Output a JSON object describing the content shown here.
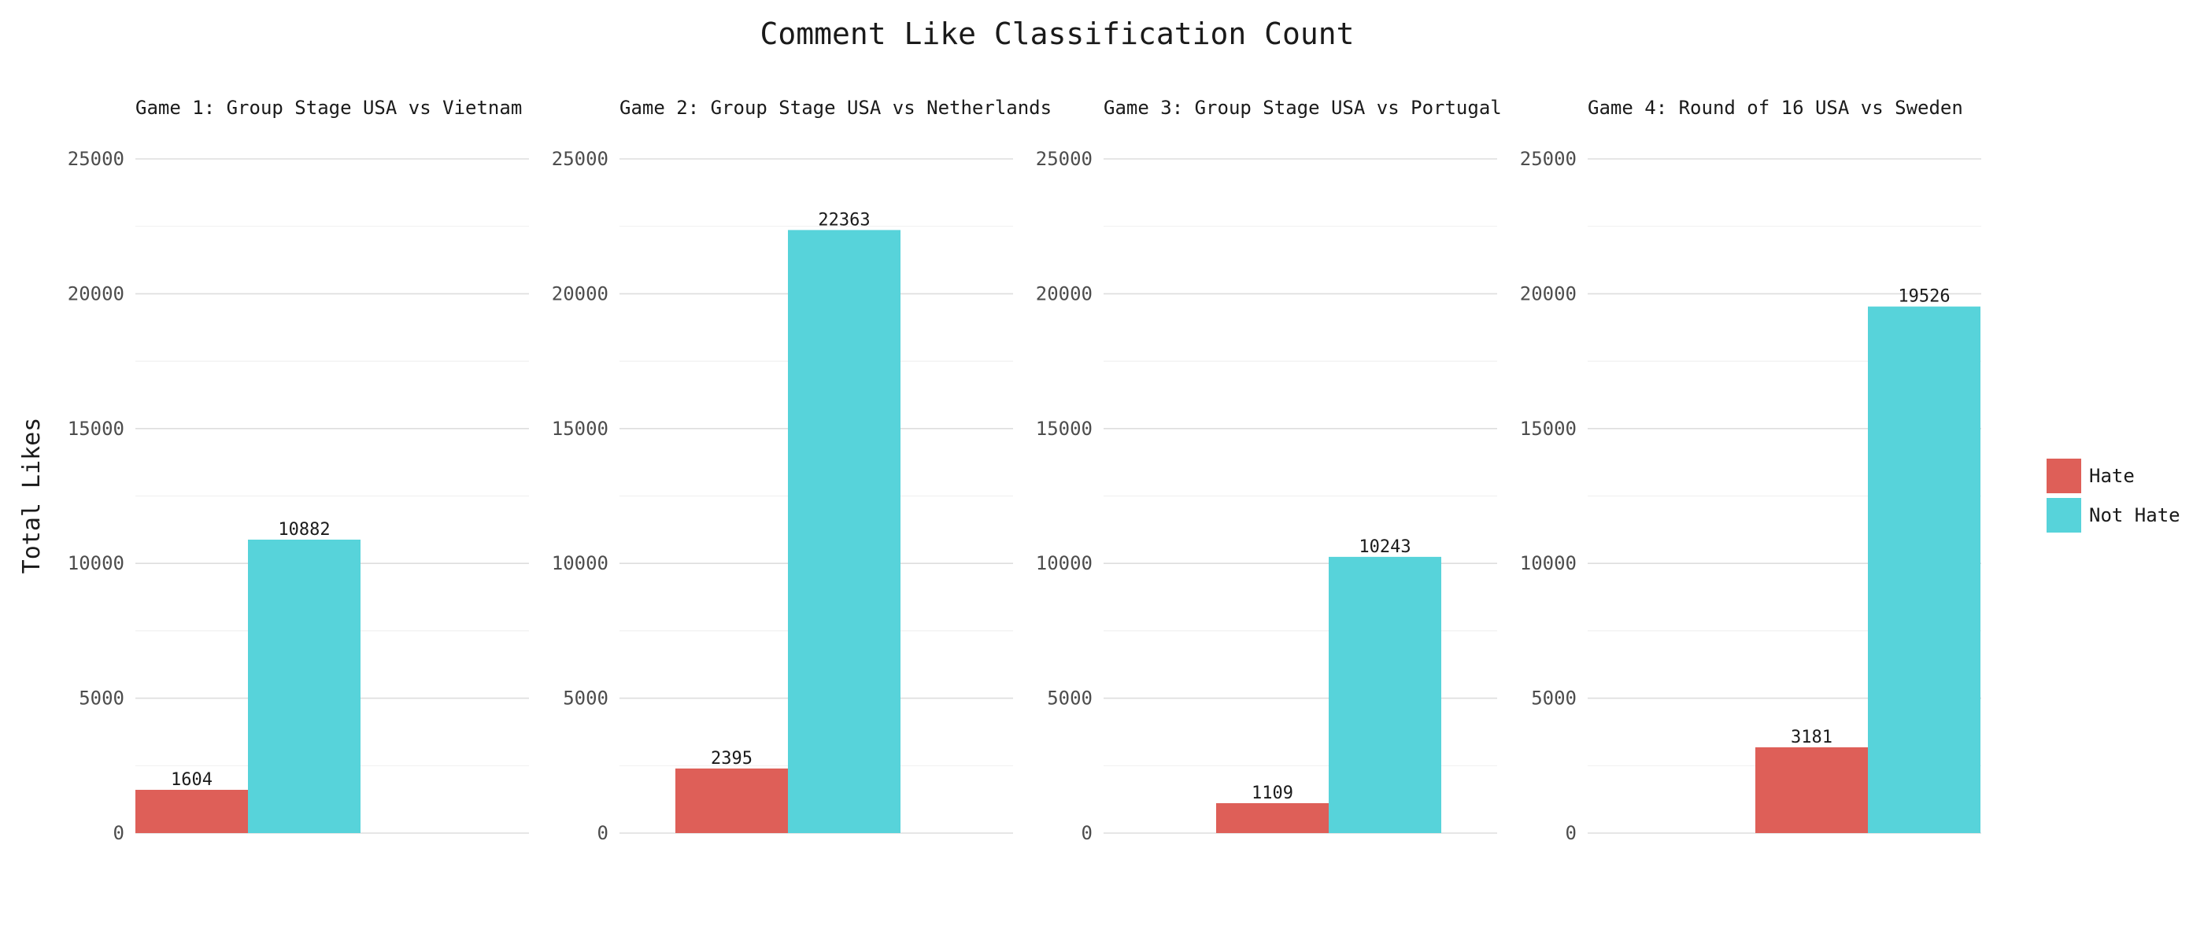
{
  "chart_data": {
    "type": "bar",
    "title": "Comment Like Classification Count",
    "ylabel": "Total Likes",
    "xlabel": "",
    "ylim": [
      0,
      25000
    ],
    "yticks": [
      0,
      5000,
      10000,
      15000,
      20000,
      25000
    ],
    "grid": true,
    "legend_position": "right",
    "series": [
      {
        "name": "Hate",
        "color": "#de5f58"
      },
      {
        "name": "Not Hate",
        "color": "#57d3da"
      }
    ],
    "panels": [
      {
        "title": "Game 1: Group Stage USA vs Vietnam",
        "values": {
          "Hate": 1604,
          "Not Hate": 10882
        }
      },
      {
        "title": "Game 2: Group Stage USA vs Netherlands",
        "values": {
          "Hate": 2395,
          "Not Hate": 22363
        }
      },
      {
        "title": "Game 3: Group Stage USA vs Portugal",
        "values": {
          "Hate": 1109,
          "Not Hate": 10243
        }
      },
      {
        "title": "Game 4: Round of 16 USA vs Sweden",
        "values": {
          "Hate": 3181,
          "Not Hate": 19526
        }
      }
    ]
  }
}
